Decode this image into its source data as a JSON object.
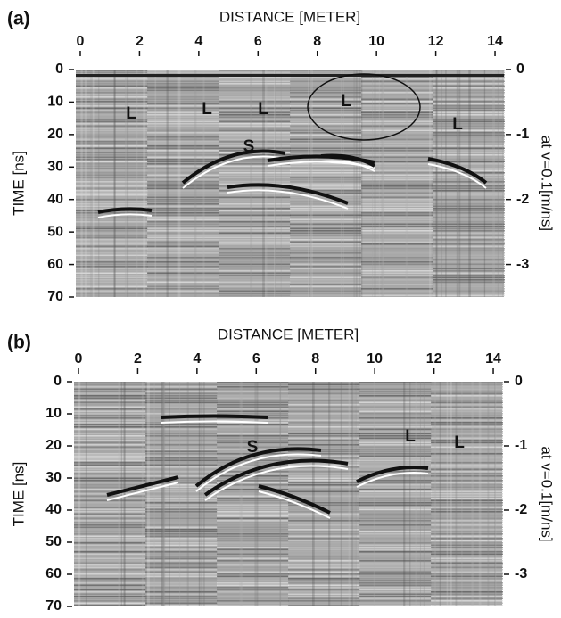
{
  "chart_data": [
    {
      "type": "radargram",
      "panel_label": "(a)",
      "xlabel": "DISTANCE [METER]",
      "ylabel": "TIME [ns]",
      "y2label": "at v=0.1[m/ns]",
      "xlim": [
        -0.15,
        14.3
      ],
      "xticks": [
        0,
        2,
        4,
        6,
        8,
        10,
        12,
        14
      ],
      "ylim": [
        0,
        70
      ],
      "yticks": [
        0,
        10,
        20,
        30,
        40,
        50,
        60,
        70
      ],
      "y2lim": [
        0,
        -3.5
      ],
      "y2ticks": [
        0,
        -1,
        -2,
        -3
      ],
      "annotations": [
        "L",
        "L",
        "L",
        "L",
        "L",
        "S"
      ]
    },
    {
      "type": "radargram",
      "panel_label": "(b)",
      "xlabel": "DISTANCE [METER]",
      "ylabel": "TIME [ns]",
      "y2label": "at v=0.1[m/ns]",
      "xlim": [
        -0.15,
        14.3
      ],
      "xticks": [
        0,
        2,
        4,
        6,
        8,
        10,
        12,
        14
      ],
      "ylim": [
        0,
        70
      ],
      "yticks": [
        0,
        10,
        20,
        30,
        40,
        50,
        60,
        70
      ],
      "y2lim": [
        0,
        -3.5
      ],
      "y2ticks": [
        0,
        -1,
        -2,
        -3
      ],
      "annotations": [
        "S",
        "L",
        "L"
      ]
    }
  ]
}
